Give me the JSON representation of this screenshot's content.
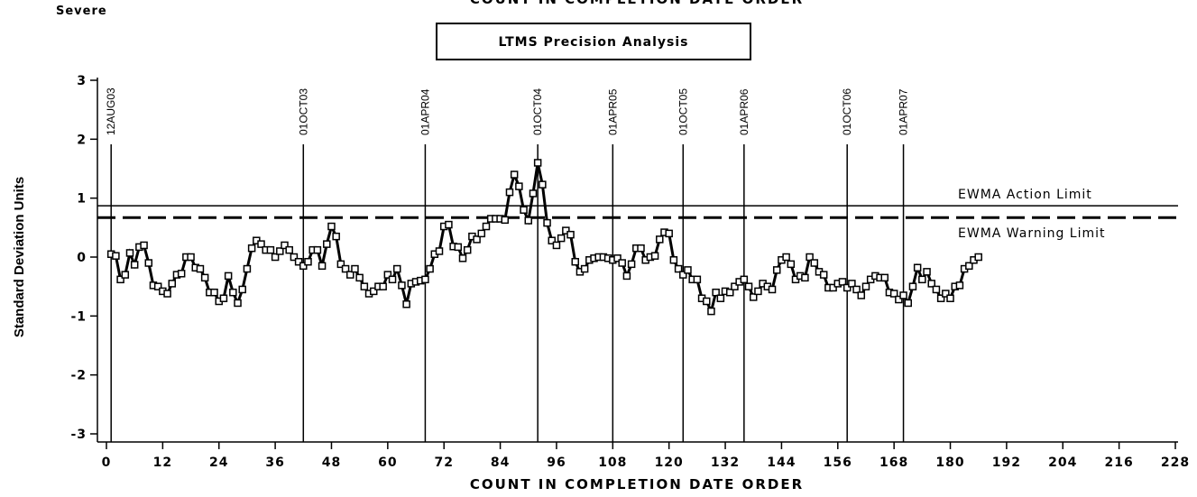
{
  "chart_data": {
    "type": "line",
    "title": "COUNT IN COMPLETION DATE ORDER",
    "subtitle": "Severe",
    "box_title": "LTMS Precision Analysis",
    "x_label": "COUNT IN COMPLETION DATE ORDER",
    "y_label": "Standard Deviation Units",
    "xlim": [
      0,
      228
    ],
    "xticks": [
      0,
      12,
      24,
      36,
      48,
      60,
      72,
      84,
      96,
      108,
      120,
      132,
      144,
      156,
      168,
      180,
      192,
      204,
      216,
      228
    ],
    "ylim": [
      -3,
      3
    ],
    "yticks": [
      -3,
      -2,
      -1,
      0,
      1,
      2,
      3
    ],
    "reference_lines": [
      {
        "y": 0.87,
        "label": "EWMA Action Limit",
        "style": "solid"
      },
      {
        "y": 0.67,
        "label": "EWMA Warning Limit",
        "style": "dashed"
      }
    ],
    "date_lines": [
      {
        "x": 1,
        "label": "12AUG03"
      },
      {
        "x": 42,
        "label": "01OCT03"
      },
      {
        "x": 68,
        "label": "01APR04"
      },
      {
        "x": 92,
        "label": "01OCT04"
      },
      {
        "x": 108,
        "label": "01APR05"
      },
      {
        "x": 123,
        "label": "01OCT05"
      },
      {
        "x": 136,
        "label": "01APR06"
      },
      {
        "x": 158,
        "label": "01OCT06"
      },
      {
        "x": 170,
        "label": "01APR07"
      }
    ],
    "x": [
      1,
      2,
      3,
      4,
      5,
      6,
      7,
      8,
      9,
      10,
      11,
      12,
      13,
      14,
      15,
      16,
      17,
      18,
      19,
      20,
      21,
      22,
      23,
      24,
      25,
      26,
      27,
      28,
      29,
      30,
      31,
      32,
      33,
      34,
      35,
      36,
      37,
      38,
      39,
      40,
      41,
      42,
      43,
      44,
      45,
      46,
      47,
      48,
      49,
      50,
      51,
      52,
      53,
      54,
      55,
      56,
      57,
      58,
      59,
      60,
      61,
      62,
      63,
      64,
      65,
      66,
      67,
      68,
      69,
      70,
      71,
      72,
      73,
      74,
      75,
      76,
      77,
      78,
      79,
      80,
      81,
      82,
      83,
      84,
      85,
      86,
      87,
      88,
      89,
      90,
      91,
      92,
      93,
      94,
      95,
      96,
      97,
      98,
      99,
      100,
      101,
      102,
      103,
      104,
      105,
      106,
      107,
      108,
      109,
      110,
      111,
      112,
      113,
      114,
      115,
      116,
      117,
      118,
      119,
      120,
      121,
      122,
      123,
      124,
      125,
      126,
      127,
      128,
      129,
      130,
      131,
      132,
      133,
      134,
      135,
      136,
      137,
      138,
      139,
      140,
      141,
      142,
      143,
      144,
      145,
      146,
      147,
      148,
      149,
      150,
      151,
      152,
      153,
      154,
      155,
      156,
      157,
      158,
      159,
      160,
      161,
      162,
      163,
      164,
      165,
      166,
      167,
      168,
      169,
      170,
      171,
      172,
      173,
      174,
      175,
      176,
      177,
      178,
      179,
      180,
      181,
      182,
      183,
      184,
      185,
      186
    ],
    "series": [
      {
        "color": "#000000",
        "values": [
          0.05,
          0.02,
          -0.38,
          -0.3,
          0.07,
          -0.13,
          0.17,
          0.2,
          -0.1,
          -0.48,
          -0.5,
          -0.58,
          -0.62,
          -0.45,
          -0.3,
          -0.28,
          0.0,
          0.0,
          -0.18,
          -0.2,
          -0.35,
          -0.6,
          -0.6,
          -0.75,
          -0.7,
          -0.32,
          -0.6,
          -0.78,
          -0.55,
          -0.2,
          0.15,
          0.28,
          0.22,
          0.12,
          0.12,
          0.0,
          0.1,
          0.2,
          0.12,
          0.0,
          -0.08,
          -0.15,
          -0.08,
          0.12,
          0.12,
          -0.15,
          0.22,
          0.52,
          0.35,
          -0.12,
          -0.2,
          -0.3,
          -0.2,
          -0.35,
          -0.5,
          -0.62,
          -0.58,
          -0.5,
          -0.5,
          -0.3,
          -0.38,
          -0.2,
          -0.48,
          -0.8,
          -0.45,
          -0.42,
          -0.4,
          -0.38,
          -0.2,
          0.05,
          0.1,
          0.52,
          0.55,
          0.18,
          0.17,
          -0.02,
          0.12,
          0.35,
          0.3,
          0.4,
          0.52,
          0.65,
          0.65,
          0.65,
          0.63,
          1.1,
          1.4,
          1.2,
          0.8,
          0.62,
          1.08,
          1.6,
          1.23,
          0.58,
          0.28,
          0.2,
          0.32,
          0.45,
          0.38,
          -0.08,
          -0.25,
          -0.2,
          -0.05,
          -0.02,
          0.0,
          0.0,
          -0.02,
          -0.05,
          -0.02,
          -0.1,
          -0.32,
          -0.12,
          0.15,
          0.15,
          -0.05,
          0.0,
          0.02,
          0.3,
          0.42,
          0.4,
          -0.05,
          -0.2,
          -0.3,
          -0.22,
          -0.38,
          -0.38,
          -0.7,
          -0.75,
          -0.92,
          -0.6,
          -0.7,
          -0.58,
          -0.6,
          -0.5,
          -0.42,
          -0.38,
          -0.5,
          -0.68,
          -0.58,
          -0.45,
          -0.5,
          -0.55,
          -0.22,
          -0.05,
          0.0,
          -0.12,
          -0.38,
          -0.32,
          -0.35,
          0.0,
          -0.1,
          -0.25,
          -0.3,
          -0.52,
          -0.52,
          -0.45,
          -0.42,
          -0.52,
          -0.45,
          -0.55,
          -0.65,
          -0.5,
          -0.38,
          -0.32,
          -0.35,
          -0.35,
          -0.6,
          -0.62,
          -0.72,
          -0.65,
          -0.78,
          -0.5,
          -0.18,
          -0.38,
          -0.25,
          -0.45,
          -0.55,
          -0.7,
          -0.62,
          -0.7,
          -0.5,
          -0.48,
          -0.2,
          -0.15,
          -0.05,
          0.0
        ]
      }
    ]
  }
}
